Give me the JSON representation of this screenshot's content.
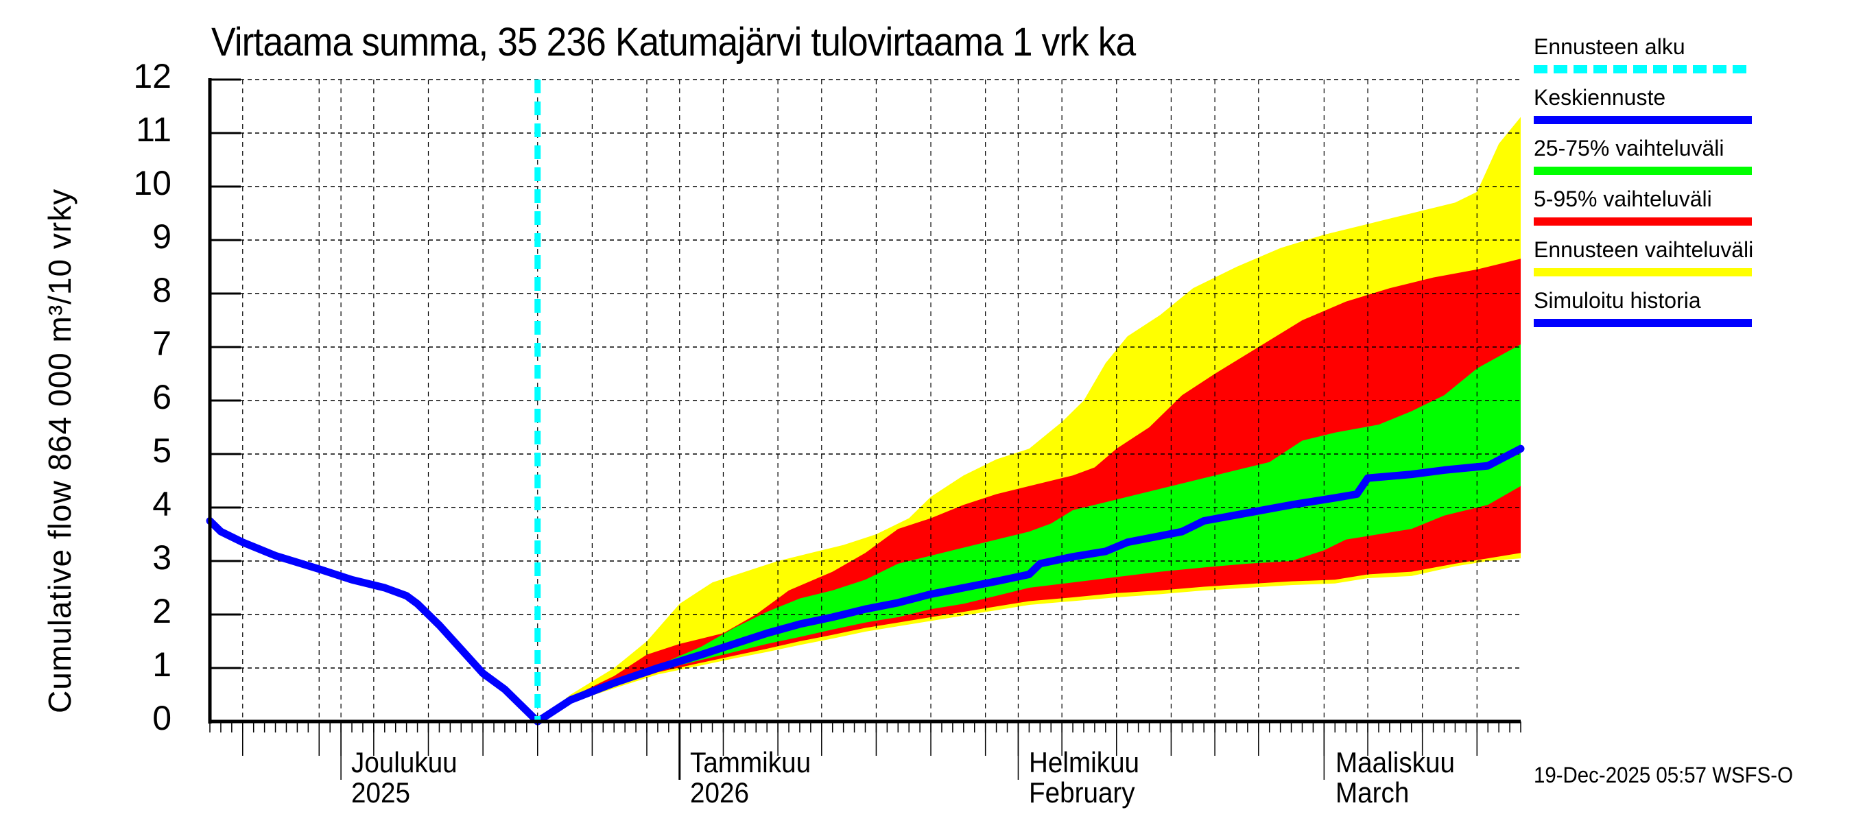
{
  "chart_data": {
    "type": "area",
    "title": "Virtaama summa, 35 236 Katumajärvi tulovirtaama 1 vrk ka",
    "ylabel": "Cumulative flow    864 000 m³/10 vrky",
    "xlabel": "",
    "ylim": [
      0,
      12
    ],
    "yticks": [
      0,
      1,
      2,
      3,
      4,
      5,
      6,
      7,
      8,
      9,
      10,
      11,
      12
    ],
    "x_unit": "days since 19-Nov-2025",
    "xlim": [
      0,
      120
    ],
    "grid": true,
    "x_month_labels": [
      {
        "line1": "Joulukuu",
        "line2": "2025",
        "day": 12
      },
      {
        "line1": "Tammikuu",
        "line2": "2026",
        "day": 43
      },
      {
        "line1": "Helmikuu",
        "line2": "February",
        "day": 74
      },
      {
        "line1": "Maaliskuu",
        "line2": "March",
        "day": 102
      }
    ],
    "forecast_start_day": 30,
    "legend_position": "right",
    "series": [
      {
        "name": "Simuloitu historia",
        "type": "line",
        "color": "#0000ff",
        "points": [
          [
            0,
            3.75
          ],
          [
            1,
            3.55
          ],
          [
            3,
            3.35
          ],
          [
            6,
            3.1
          ],
          [
            10,
            2.85
          ],
          [
            13,
            2.65
          ],
          [
            16,
            2.5
          ],
          [
            18,
            2.35
          ],
          [
            19,
            2.2
          ],
          [
            21,
            1.8
          ],
          [
            23,
            1.35
          ],
          [
            25,
            0.9
          ],
          [
            27,
            0.6
          ],
          [
            28,
            0.4
          ],
          [
            30,
            0.0
          ]
        ]
      },
      {
        "name": "Keskiennuste",
        "type": "line",
        "color": "#0000ff",
        "points": [
          [
            30,
            0.0
          ],
          [
            33,
            0.4
          ],
          [
            37,
            0.72
          ],
          [
            41,
            1.0
          ],
          [
            45,
            1.25
          ],
          [
            48,
            1.45
          ],
          [
            51,
            1.65
          ],
          [
            54,
            1.82
          ],
          [
            57,
            1.95
          ],
          [
            60,
            2.1
          ],
          [
            63,
            2.22
          ],
          [
            66,
            2.38
          ],
          [
            69,
            2.5
          ],
          [
            72,
            2.62
          ],
          [
            75,
            2.75
          ],
          [
            76,
            2.95
          ],
          [
            79,
            3.08
          ],
          [
            82,
            3.18
          ],
          [
            84,
            3.35
          ],
          [
            87,
            3.47
          ],
          [
            89,
            3.55
          ],
          [
            91,
            3.75
          ],
          [
            95,
            3.9
          ],
          [
            99,
            4.05
          ],
          [
            103,
            4.18
          ],
          [
            105,
            4.25
          ],
          [
            106,
            4.55
          ],
          [
            110,
            4.62
          ],
          [
            113,
            4.7
          ],
          [
            117,
            4.78
          ],
          [
            120,
            5.1
          ]
        ]
      },
      {
        "name": "25-75% vaihteluväli",
        "type": "band",
        "color": "#00ff00",
        "upper": [
          [
            30,
            0.0
          ],
          [
            33,
            0.42
          ],
          [
            37,
            0.78
          ],
          [
            41,
            1.05
          ],
          [
            45,
            1.4
          ],
          [
            48,
            1.75
          ],
          [
            51,
            2.05
          ],
          [
            54,
            2.3
          ],
          [
            57,
            2.45
          ],
          [
            60,
            2.65
          ],
          [
            63,
            2.95
          ],
          [
            66,
            3.1
          ],
          [
            69,
            3.25
          ],
          [
            72,
            3.4
          ],
          [
            75,
            3.55
          ],
          [
            77,
            3.7
          ],
          [
            79,
            3.95
          ],
          [
            82,
            4.1
          ],
          [
            86,
            4.3
          ],
          [
            90,
            4.5
          ],
          [
            94,
            4.7
          ],
          [
            97,
            4.85
          ],
          [
            100,
            5.25
          ],
          [
            103,
            5.4
          ],
          [
            107,
            5.55
          ],
          [
            110,
            5.8
          ],
          [
            113,
            6.1
          ],
          [
            116,
            6.6
          ],
          [
            120,
            7.05
          ]
        ],
        "lower": [
          [
            30,
            0.0
          ],
          [
            33,
            0.38
          ],
          [
            37,
            0.68
          ],
          [
            41,
            0.95
          ],
          [
            45,
            1.15
          ],
          [
            48,
            1.3
          ],
          [
            51,
            1.45
          ],
          [
            54,
            1.58
          ],
          [
            57,
            1.72
          ],
          [
            60,
            1.85
          ],
          [
            63,
            1.95
          ],
          [
            66,
            2.1
          ],
          [
            69,
            2.2
          ],
          [
            72,
            2.35
          ],
          [
            75,
            2.5
          ],
          [
            79,
            2.6
          ],
          [
            83,
            2.7
          ],
          [
            87,
            2.8
          ],
          [
            91,
            2.88
          ],
          [
            95,
            2.95
          ],
          [
            99,
            3.0
          ],
          [
            102,
            3.2
          ],
          [
            104,
            3.4
          ],
          [
            107,
            3.5
          ],
          [
            110,
            3.6
          ],
          [
            113,
            3.85
          ],
          [
            117,
            4.05
          ],
          [
            120,
            4.4
          ]
        ]
      },
      {
        "name": "5-95% vaihteluväli",
        "type": "band",
        "color": "#ff0000",
        "upper": [
          [
            30,
            0.0
          ],
          [
            33,
            0.45
          ],
          [
            37,
            0.85
          ],
          [
            40,
            1.25
          ],
          [
            43,
            1.45
          ],
          [
            47,
            1.65
          ],
          [
            50,
            2.0
          ],
          [
            53,
            2.45
          ],
          [
            57,
            2.8
          ],
          [
            60,
            3.15
          ],
          [
            63,
            3.6
          ],
          [
            66,
            3.8
          ],
          [
            69,
            4.05
          ],
          [
            72,
            4.25
          ],
          [
            75,
            4.4
          ],
          [
            79,
            4.6
          ],
          [
            81,
            4.75
          ],
          [
            83,
            5.1
          ],
          [
            86,
            5.5
          ],
          [
            89,
            6.1
          ],
          [
            92,
            6.5
          ],
          [
            96,
            7.0
          ],
          [
            100,
            7.5
          ],
          [
            104,
            7.85
          ],
          [
            108,
            8.1
          ],
          [
            112,
            8.3
          ],
          [
            116,
            8.45
          ],
          [
            120,
            8.65
          ]
        ],
        "lower": [
          [
            30,
            0.0
          ],
          [
            33,
            0.36
          ],
          [
            37,
            0.65
          ],
          [
            41,
            0.92
          ],
          [
            45,
            1.1
          ],
          [
            48,
            1.23
          ],
          [
            51,
            1.36
          ],
          [
            54,
            1.5
          ],
          [
            57,
            1.62
          ],
          [
            60,
            1.75
          ],
          [
            63,
            1.85
          ],
          [
            66,
            1.95
          ],
          [
            69,
            2.05
          ],
          [
            72,
            2.15
          ],
          [
            75,
            2.25
          ],
          [
            79,
            2.32
          ],
          [
            83,
            2.4
          ],
          [
            87,
            2.45
          ],
          [
            91,
            2.52
          ],
          [
            95,
            2.57
          ],
          [
            99,
            2.62
          ],
          [
            103,
            2.65
          ],
          [
            106,
            2.75
          ],
          [
            110,
            2.8
          ],
          [
            114,
            2.95
          ],
          [
            117,
            3.05
          ],
          [
            120,
            3.15
          ]
        ]
      },
      {
        "name": "Ennusteen vaihteluväli",
        "type": "band",
        "color": "#ffff00",
        "upper": [
          [
            30,
            0.0
          ],
          [
            33,
            0.5
          ],
          [
            37,
            1.0
          ],
          [
            40,
            1.5
          ],
          [
            43,
            2.2
          ],
          [
            46,
            2.6
          ],
          [
            49,
            2.8
          ],
          [
            52,
            3.0
          ],
          [
            55,
            3.15
          ],
          [
            58,
            3.3
          ],
          [
            61,
            3.5
          ],
          [
            64,
            3.8
          ],
          [
            66,
            4.2
          ],
          [
            69,
            4.6
          ],
          [
            72,
            4.9
          ],
          [
            75,
            5.1
          ],
          [
            78,
            5.6
          ],
          [
            80,
            6.0
          ],
          [
            82,
            6.7
          ],
          [
            84,
            7.2
          ],
          [
            87,
            7.6
          ],
          [
            90,
            8.1
          ],
          [
            94,
            8.5
          ],
          [
            98,
            8.85
          ],
          [
            102,
            9.1
          ],
          [
            106,
            9.3
          ],
          [
            110,
            9.5
          ],
          [
            114,
            9.7
          ],
          [
            116,
            9.9
          ],
          [
            118,
            10.8
          ],
          [
            120,
            11.3
          ]
        ],
        "lower": [
          [
            30,
            0.0
          ],
          [
            33,
            0.35
          ],
          [
            37,
            0.62
          ],
          [
            41,
            0.88
          ],
          [
            45,
            1.05
          ],
          [
            48,
            1.18
          ],
          [
            51,
            1.3
          ],
          [
            54,
            1.43
          ],
          [
            57,
            1.55
          ],
          [
            60,
            1.68
          ],
          [
            63,
            1.78
          ],
          [
            66,
            1.88
          ],
          [
            69,
            1.98
          ],
          [
            72,
            2.08
          ],
          [
            75,
            2.18
          ],
          [
            79,
            2.25
          ],
          [
            83,
            2.32
          ],
          [
            87,
            2.38
          ],
          [
            91,
            2.45
          ],
          [
            95,
            2.5
          ],
          [
            99,
            2.55
          ],
          [
            103,
            2.58
          ],
          [
            106,
            2.68
          ],
          [
            110,
            2.72
          ],
          [
            114,
            2.9
          ],
          [
            117,
            3.0
          ],
          [
            120,
            3.05
          ]
        ]
      }
    ]
  },
  "title": "Virtaama summa, 35 236 Katumajärvi tulovirtaama 1 vrk ka",
  "y_axis_label": "Cumulative flow    864 000 m³/10 vrky",
  "y_ticks": [
    "12",
    "11",
    "10",
    "9",
    "8",
    "7",
    "6",
    "5",
    "4",
    "3",
    "2",
    "1",
    "0"
  ],
  "x_labels": [
    {
      "line1": "Joulukuu",
      "line2": "2025"
    },
    {
      "line1": "Tammikuu",
      "line2": "2026"
    },
    {
      "line1": "Helmikuu",
      "line2": "February"
    },
    {
      "line1": "Maaliskuu",
      "line2": "March"
    }
  ],
  "legend": [
    {
      "label": "Ennusteen alku",
      "color": "#00ffff",
      "style": "dashed"
    },
    {
      "label": "Keskiennuste",
      "color": "#0000ff",
      "style": "solid"
    },
    {
      "label": "25-75% vaihteluväli",
      "color": "#00ff00",
      "style": "solid"
    },
    {
      "label": "5-95% vaihteluväli",
      "color": "#ff0000",
      "style": "solid"
    },
    {
      "label": "Ennusteen vaihteluväli",
      "color": "#ffff00",
      "style": "solid"
    },
    {
      "label": "Simuloitu historia",
      "color": "#0000ff",
      "style": "solid"
    }
  ],
  "footer": "19-Dec-2025 05:57 WSFS-O"
}
